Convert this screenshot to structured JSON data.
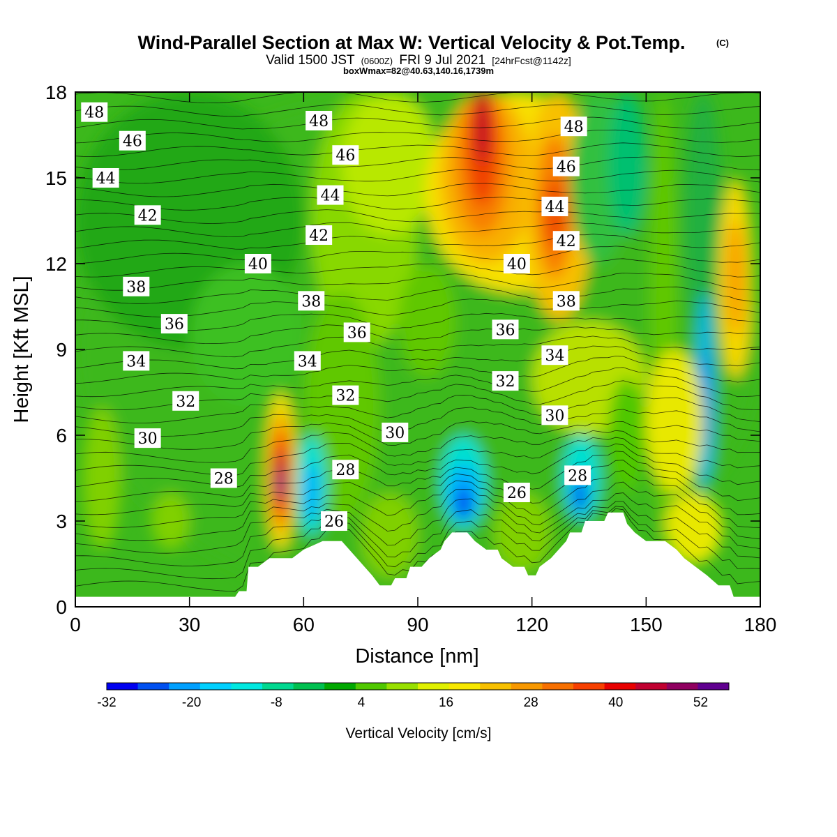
{
  "header": {
    "title": "Wind-Parallel Section at Max W: Vertical Velocity & Pot.Temp.",
    "copyright": "(C)",
    "valid_prefix": "Valid 1500 JST",
    "valid_utc": "(0600Z)",
    "valid_date": "FRI 9 Jul 2021",
    "forecast": "[24hrFcst@1142z]",
    "boxwmax": "boxWmax=82@40.63,140.16,1739m"
  },
  "chart_data": {
    "type": "heatmap",
    "xlabel": "Distance [nm]",
    "ylabel": "Height [Kft MSL]",
    "xlim": [
      0,
      180
    ],
    "ylim": [
      0,
      18
    ],
    "x_ticks": [
      "0",
      "30",
      "60",
      "90",
      "120",
      "150",
      "180"
    ],
    "y_ticks": [
      "0",
      "3",
      "6",
      "9",
      "12",
      "15",
      "18"
    ],
    "colorbar": {
      "label": "Vertical Velocity [cm/s]",
      "range": [
        -32,
        56
      ],
      "tick_labels": [
        "-32",
        "-20",
        "-8",
        "4",
        "16",
        "28",
        "40",
        "52"
      ],
      "colors": [
        "#0000f0",
        "#0050f0",
        "#00a0ff",
        "#00d0ff",
        "#00e8e0",
        "#00d890",
        "#00c050",
        "#00a800",
        "#50c800",
        "#98e000",
        "#e0f000",
        "#f8e800",
        "#f8c000",
        "#f89800",
        "#f87000",
        "#f84000",
        "#e80000",
        "#c00030",
        "#900060",
        "#600090"
      ]
    },
    "theta_contour_labels": [
      {
        "value": "48",
        "x": 5,
        "y": 17.3
      },
      {
        "value": "46",
        "x": 15,
        "y": 16.3
      },
      {
        "value": "44",
        "x": 8,
        "y": 15.0
      },
      {
        "value": "42",
        "x": 19,
        "y": 13.7
      },
      {
        "value": "38",
        "x": 16,
        "y": 11.2
      },
      {
        "value": "36",
        "x": 26,
        "y": 9.9
      },
      {
        "value": "34",
        "x": 16,
        "y": 8.6
      },
      {
        "value": "32",
        "x": 29,
        "y": 7.2
      },
      {
        "value": "30",
        "x": 19,
        "y": 5.9
      },
      {
        "value": "28",
        "x": 39,
        "y": 4.5
      },
      {
        "value": "40",
        "x": 48,
        "y": 12.0
      },
      {
        "value": "38",
        "x": 62,
        "y": 10.7
      },
      {
        "value": "34",
        "x": 61,
        "y": 8.6
      },
      {
        "value": "48",
        "x": 64,
        "y": 17.0
      },
      {
        "value": "46",
        "x": 71,
        "y": 15.8
      },
      {
        "value": "44",
        "x": 67,
        "y": 14.4
      },
      {
        "value": "42",
        "x": 64,
        "y": 13.0
      },
      {
        "value": "36",
        "x": 74,
        "y": 9.6
      },
      {
        "value": "32",
        "x": 71,
        "y": 7.4
      },
      {
        "value": "28",
        "x": 71,
        "y": 4.8
      },
      {
        "value": "26",
        "x": 68,
        "y": 3.0
      },
      {
        "value": "30",
        "x": 84,
        "y": 6.1
      },
      {
        "value": "40",
        "x": 116,
        "y": 12.0
      },
      {
        "value": "36",
        "x": 113,
        "y": 9.7
      },
      {
        "value": "32",
        "x": 113,
        "y": 7.9
      },
      {
        "value": "26",
        "x": 116,
        "y": 4.0
      },
      {
        "value": "48",
        "x": 131,
        "y": 16.8
      },
      {
        "value": "46",
        "x": 129,
        "y": 15.4
      },
      {
        "value": "44",
        "x": 126,
        "y": 14.0
      },
      {
        "value": "42",
        "x": 129,
        "y": 12.8
      },
      {
        "value": "38",
        "x": 129,
        "y": 10.7
      },
      {
        "value": "34",
        "x": 126,
        "y": 8.8
      },
      {
        "value": "30",
        "x": 126,
        "y": 6.7
      },
      {
        "value": "28",
        "x": 132,
        "y": 4.6
      }
    ],
    "terrain_profile": [
      [
        0,
        0.35
      ],
      [
        42,
        0.35
      ],
      [
        43,
        0.55
      ],
      [
        45,
        0.55
      ],
      [
        45.5,
        1.4
      ],
      [
        48,
        1.4
      ],
      [
        51,
        1.7
      ],
      [
        57,
        1.7
      ],
      [
        60,
        2.0
      ],
      [
        65,
        2.3
      ],
      [
        70,
        2.3
      ],
      [
        72,
        2.0
      ],
      [
        74,
        1.7
      ],
      [
        76,
        1.4
      ],
      [
        78,
        1.1
      ],
      [
        80,
        0.75
      ],
      [
        83,
        0.75
      ],
      [
        84,
        1.0
      ],
      [
        87,
        1.0
      ],
      [
        88,
        1.4
      ],
      [
        91,
        1.4
      ],
      [
        93,
        1.7
      ],
      [
        96,
        2.0
      ],
      [
        97,
        2.3
      ],
      [
        99,
        2.6
      ],
      [
        103,
        2.6
      ],
      [
        105,
        2.3
      ],
      [
        108,
        2.0
      ],
      [
        111,
        2.0
      ],
      [
        112,
        1.7
      ],
      [
        115,
        1.4
      ],
      [
        118,
        1.4
      ],
      [
        119,
        1.1
      ],
      [
        121,
        1.1
      ],
      [
        122,
        1.4
      ],
      [
        125,
        1.7
      ],
      [
        127,
        2.0
      ],
      [
        129,
        2.3
      ],
      [
        130,
        2.6
      ],
      [
        133,
        2.6
      ],
      [
        134,
        3.0
      ],
      [
        139,
        3.0
      ],
      [
        140,
        3.3
      ],
      [
        144,
        3.3
      ],
      [
        145,
        2.9
      ],
      [
        147,
        2.6
      ],
      [
        150,
        2.3
      ],
      [
        155,
        2.3
      ],
      [
        158,
        2.0
      ],
      [
        160,
        1.7
      ],
      [
        163,
        1.4
      ],
      [
        166,
        1.1
      ],
      [
        169,
        0.75
      ],
      [
        172,
        0.75
      ],
      [
        173,
        0.35
      ],
      [
        180,
        0.35
      ]
    ]
  }
}
